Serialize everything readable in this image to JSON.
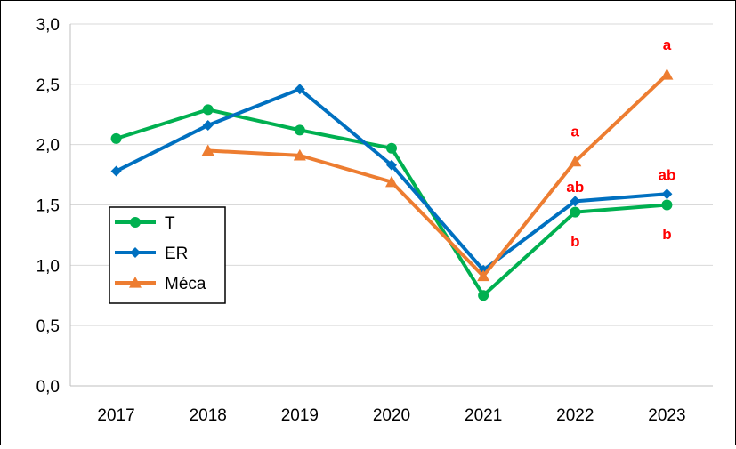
{
  "chart_data": {
    "type": "line",
    "x": [
      "2017",
      "2018",
      "2019",
      "2020",
      "2021",
      "2022",
      "2023"
    ],
    "ylim": [
      0,
      3
    ],
    "yticks": [
      "0,0",
      "0,5",
      "1,0",
      "1,5",
      "2,0",
      "2,5",
      "3,0"
    ],
    "ytick_values": [
      0,
      0.5,
      1,
      1.5,
      2,
      2.5,
      3
    ],
    "grid": true,
    "legend_position": "left",
    "series": [
      {
        "name": "T",
        "color": "#00b050",
        "marker": "circle",
        "values": [
          2.05,
          2.29,
          2.12,
          1.97,
          0.75,
          1.44,
          1.5
        ]
      },
      {
        "name": "ER",
        "color": "#0070c0",
        "marker": "diamond",
        "values": [
          1.78,
          2.16,
          2.46,
          1.83,
          0.96,
          1.53,
          1.59
        ]
      },
      {
        "name": "Méca",
        "color": "#ed7d31",
        "marker": "triangle",
        "values": [
          null,
          1.95,
          1.91,
          1.69,
          0.91,
          1.86,
          2.58
        ]
      }
    ],
    "annotations": [
      {
        "text": "a",
        "x": "2022",
        "value": 2.11,
        "color": "#ff0000"
      },
      {
        "text": "ab",
        "x": "2022",
        "value": 1.65,
        "color": "#ff0000"
      },
      {
        "text": "b",
        "x": "2022",
        "value": 1.2,
        "color": "#ff0000"
      },
      {
        "text": "a",
        "x": "2023",
        "value": 2.83,
        "color": "#ff0000"
      },
      {
        "text": "ab",
        "x": "2023",
        "value": 1.75,
        "color": "#ff0000"
      },
      {
        "text": "b",
        "x": "2023",
        "value": 1.26,
        "color": "#ff0000"
      }
    ]
  }
}
